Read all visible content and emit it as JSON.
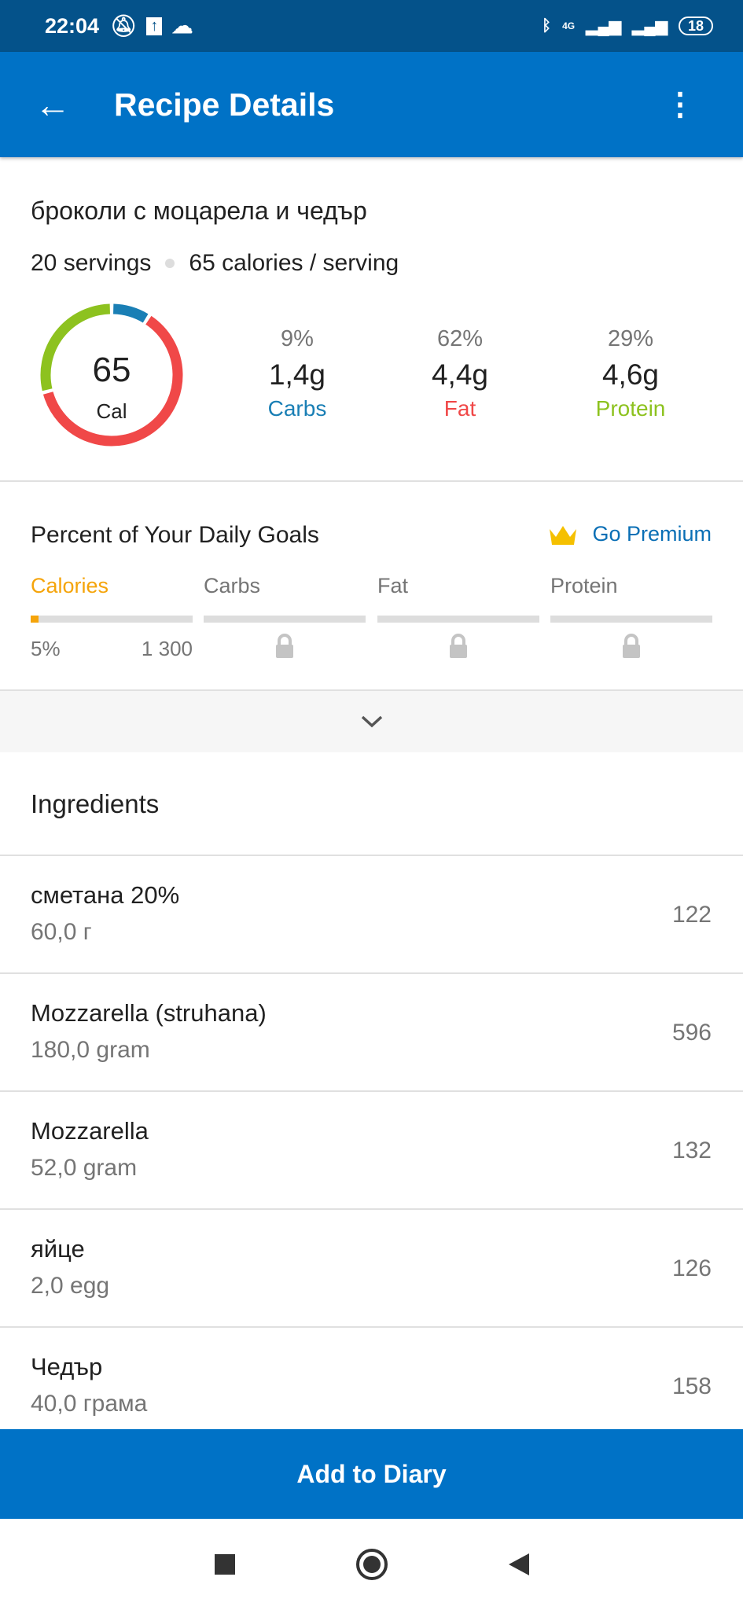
{
  "status_bar": {
    "time": "22:04",
    "network": "4G",
    "battery": "18"
  },
  "app_bar": {
    "title": "Recipe Details"
  },
  "recipe": {
    "name": "броколи с моцарела и чедър",
    "servings": "20 servings",
    "calories_per_serving": "65 calories / serving"
  },
  "summary": {
    "calories": "65",
    "cal_label": "Cal",
    "macros": [
      {
        "percent": "9%",
        "grams": "1,4g",
        "label": "Carbs",
        "color": "#1a7fb5",
        "share": 9
      },
      {
        "percent": "62%",
        "grams": "4,4g",
        "label": "Fat",
        "color": "#f04848",
        "share": 62
      },
      {
        "percent": "29%",
        "grams": "4,6g",
        "label": "Protein",
        "color": "#8dc21f",
        "share": 29
      }
    ]
  },
  "daily_goals": {
    "title": "Percent of Your Daily Goals",
    "premium_label": "Go Premium",
    "columns": [
      {
        "label": "Calories",
        "percent": "5%",
        "goal": "1 300",
        "fill": 5,
        "color": "#f5a40a"
      },
      {
        "label": "Carbs",
        "locked": true
      },
      {
        "label": "Fat",
        "locked": true
      },
      {
        "label": "Protein",
        "locked": true
      }
    ]
  },
  "ingredients": {
    "title": "Ingredients",
    "items": [
      {
        "name": "сметана 20%",
        "qty": "60,0 г",
        "cal": "122"
      },
      {
        "name": "Mozzarella (struhana)",
        "qty": "180,0 gram",
        "cal": "596"
      },
      {
        "name": "Mozzarella",
        "qty": "52,0 gram",
        "cal": "132"
      },
      {
        "name": "яйце",
        "qty": "2,0 egg",
        "cal": "126"
      },
      {
        "name": "Чедър",
        "qty": "40,0 грама",
        "cal": "158"
      }
    ]
  },
  "footer": {
    "add_label": "Add to Diary"
  }
}
